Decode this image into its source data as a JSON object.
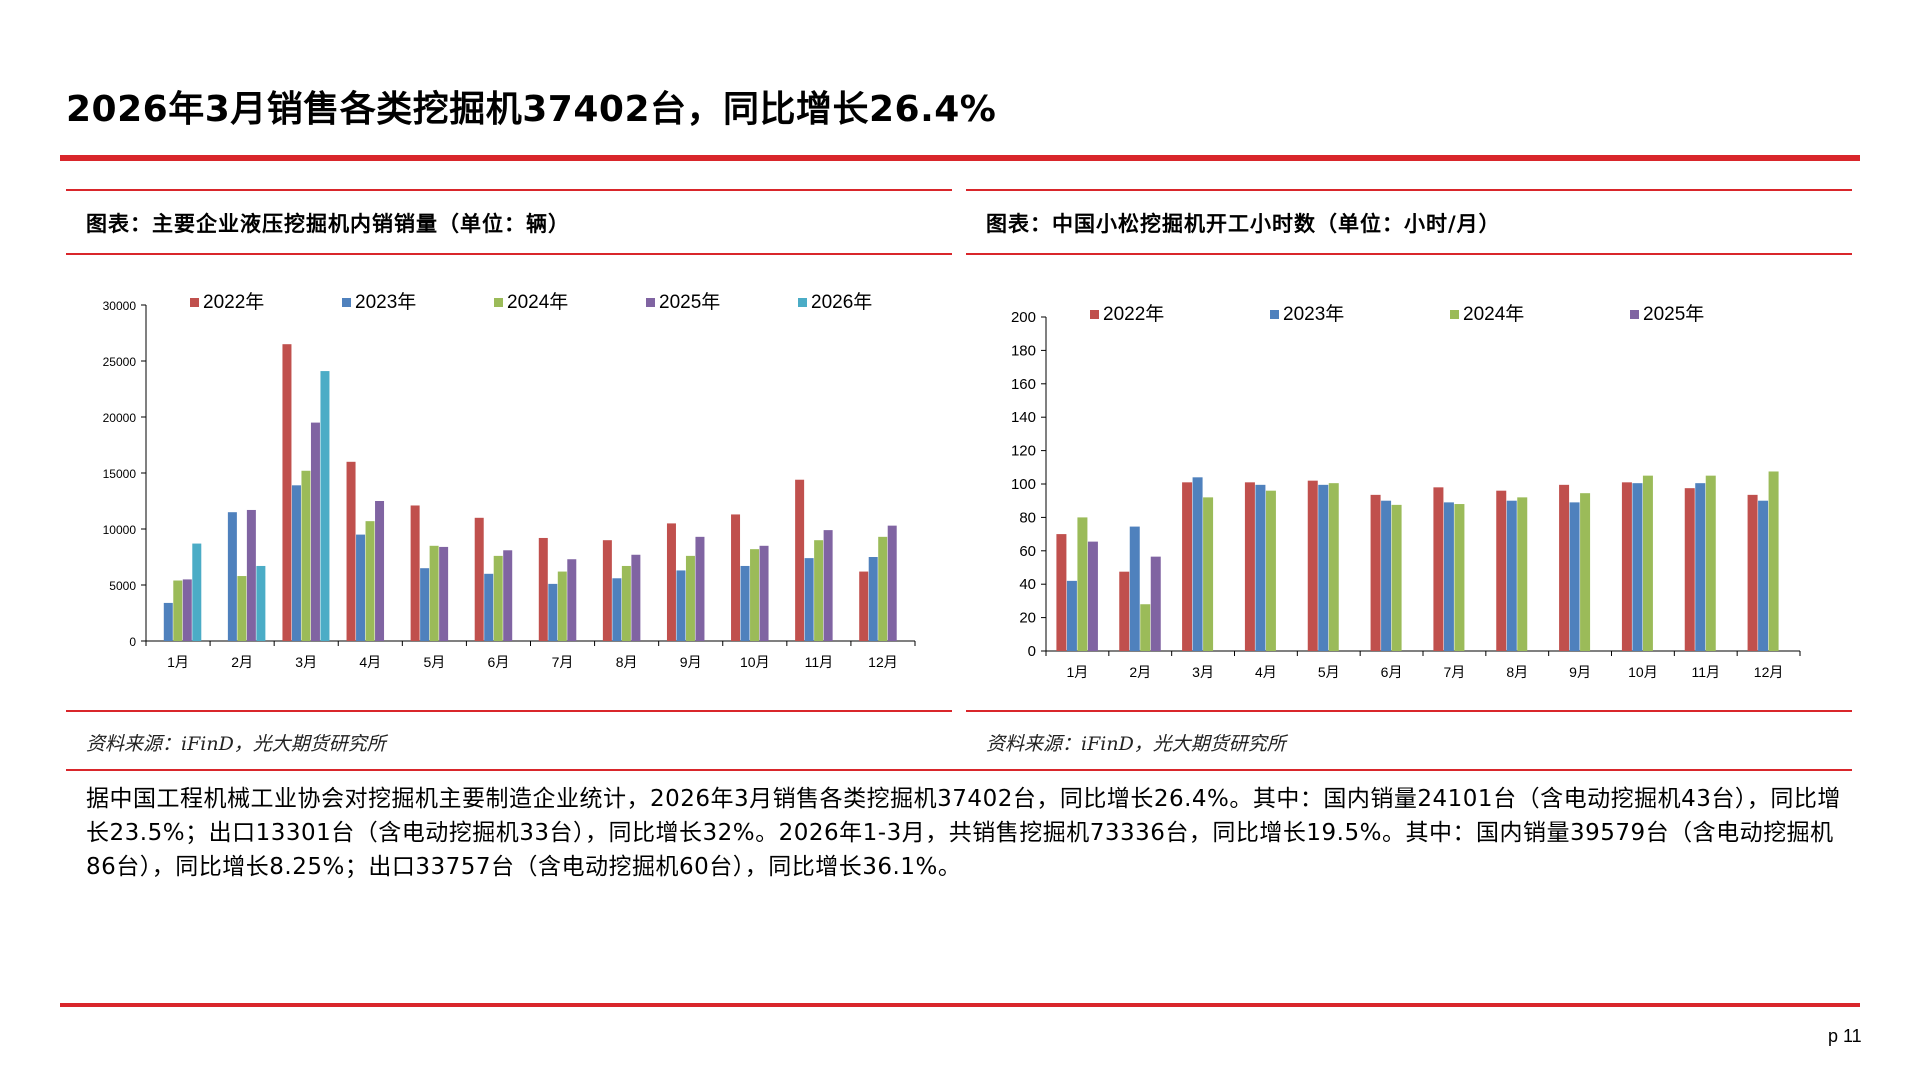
{
  "title": "2026年3月销售各类挖掘机37402台，同比增长26.4%",
  "left_panel": {
    "title": "图表：主要企业液压挖掘机内销销量（单位：辆）",
    "source": "资料来源：iFinD，光大期货研究所"
  },
  "right_panel": {
    "title": "图表：中国小松挖掘机开工小时数（单位：小时/月）",
    "source": "资料来源：iFinD，光大期货研究所"
  },
  "body_text": "据中国工程机械工业协会对挖掘机主要制造企业统计，2026年3月销售各类挖掘机37402台，同比增长26.4%。其中：国内销量24101台（含电动挖掘机43台），同比增长23.5%；出口13301台（含电动挖掘机33台），同比增长32%。2026年1-3月，共销售挖掘机73336台，同比增长19.5%。其中：国内销量39579台（含电动挖掘机86台），同比增长8.25%；出口33757台（含电动挖掘机60台），同比增长36.1%。",
  "page_number": "p 11",
  "colors": {
    "accent": "#d9262b"
  },
  "chart_data": [
    {
      "type": "bar",
      "categories": [
        "1月",
        "2月",
        "3月",
        "4月",
        "5月",
        "6月",
        "7月",
        "8月",
        "9月",
        "10月",
        "11月",
        "12月"
      ],
      "ylim": [
        0,
        30000
      ],
      "yticks": [
        0,
        5000,
        10000,
        15000,
        20000,
        25000,
        30000
      ],
      "legend_position": "top",
      "series": [
        {
          "name": "2022年",
          "color": "#c0504d",
          "values": [
            null,
            null,
            26500,
            16000,
            12100,
            11000,
            9200,
            9000,
            10500,
            11300,
            14400,
            6200
          ]
        },
        {
          "name": "2023年",
          "color": "#4f81bd",
          "values": [
            3400,
            11500,
            13900,
            9500,
            6500,
            6000,
            5100,
            5600,
            6300,
            6700,
            7400,
            7500
          ]
        },
        {
          "name": "2024年",
          "color": "#9bbb59",
          "values": [
            5400,
            5800,
            15200,
            10700,
            8500,
            7600,
            6200,
            6700,
            7600,
            8200,
            9000,
            9300
          ]
        },
        {
          "name": "2025年",
          "color": "#8064a2",
          "values": [
            5500,
            11700,
            19500,
            12500,
            8400,
            8100,
            7300,
            7700,
            9300,
            8500,
            9900,
            10300
          ]
        },
        {
          "name": "2026年",
          "color": "#4bacc6",
          "values": [
            8700,
            6700,
            24100,
            null,
            null,
            null,
            null,
            null,
            null,
            null,
            null,
            null
          ]
        }
      ]
    },
    {
      "type": "bar",
      "categories": [
        "1月",
        "2月",
        "3月",
        "4月",
        "5月",
        "6月",
        "7月",
        "8月",
        "9月",
        "10月",
        "11月",
        "12月"
      ],
      "ylim": [
        0,
        200
      ],
      "yticks": [
        0,
        20,
        40,
        60,
        80,
        100,
        120,
        140,
        160,
        180,
        200
      ],
      "legend_position": "top",
      "series": [
        {
          "name": "2022年",
          "color": "#c0504d",
          "values": [
            70,
            47.5,
            101,
            101,
            102,
            93.5,
            98,
            96,
            99.5,
            101,
            97.5,
            93.5
          ]
        },
        {
          "name": "2023年",
          "color": "#4f81bd",
          "values": [
            42,
            74.5,
            104,
            99.5,
            99.5,
            90,
            89,
            90,
            89,
            100.5,
            100.5,
            90
          ]
        },
        {
          "name": "2024年",
          "color": "#9bbb59",
          "values": [
            80,
            28,
            92,
            96,
            100.5,
            87.5,
            88,
            92,
            94.5,
            105,
            105,
            107.5
          ]
        },
        {
          "name": "2025年",
          "color": "#8064a2",
          "values": [
            65.5,
            56.5,
            null,
            null,
            null,
            null,
            null,
            null,
            null,
            null,
            null,
            null
          ]
        }
      ]
    }
  ]
}
